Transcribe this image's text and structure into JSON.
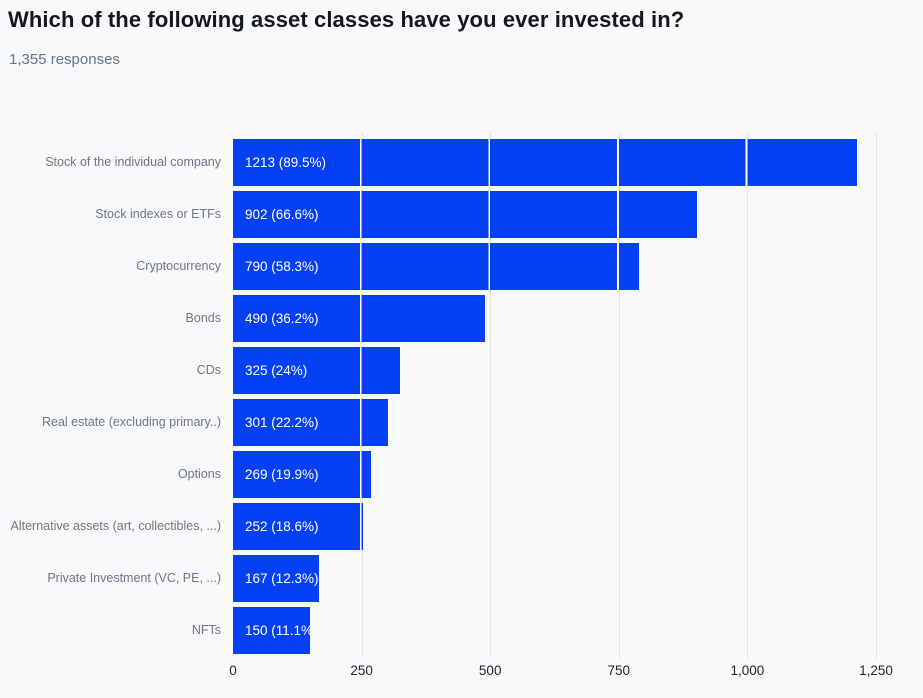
{
  "chart_data": {
    "type": "bar",
    "orientation": "horizontal",
    "title": "Which of the following asset classes have you ever invested in?",
    "subtitle": "1,355 responses",
    "categories": [
      "Stock of the individual company",
      "Stock indexes or ETFs",
      "Cryptocurrency",
      "Bonds",
      "CDs",
      "Real estate (excluding primary..)",
      "Options",
      "Alternative assets (art, collectibles, ...)",
      "Private Investment (VC, PE, ...)",
      "NFTs"
    ],
    "values": [
      1213,
      902,
      790,
      490,
      325,
      301,
      269,
      252,
      167,
      150
    ],
    "percents": [
      "89.5%",
      "66.6%",
      "58.3%",
      "36.2%",
      "24%",
      "22.2%",
      "19.9%",
      "18.6%",
      "12.3%",
      "11.1%"
    ],
    "bar_labels": [
      "1213 (89.5%)",
      "902 (66.6%)",
      "790 (58.3%)",
      "490 (36.2%)",
      "325 (24%)",
      "301 (22.2%)",
      "269 (19.9%)",
      "252 (18.6%)",
      "167 (12.3%)",
      "150 (11.1%)"
    ],
    "x_ticks": [
      {
        "value": 0,
        "label": "0"
      },
      {
        "value": 250,
        "label": "250"
      },
      {
        "value": 500,
        "label": "500"
      },
      {
        "value": 750,
        "label": "750"
      },
      {
        "value": 1000,
        "label": "1,000"
      },
      {
        "value": 1250,
        "label": "1,250"
      }
    ],
    "xlim": [
      0,
      1250
    ],
    "grid": true,
    "legend": false,
    "bar_color": "#0540f2",
    "bar_value_text_color": "#ffffff",
    "gridline_color": "#e2e4e8",
    "grid_over_bar_color": "#ffffff",
    "background_color": "#f8f9fa"
  }
}
